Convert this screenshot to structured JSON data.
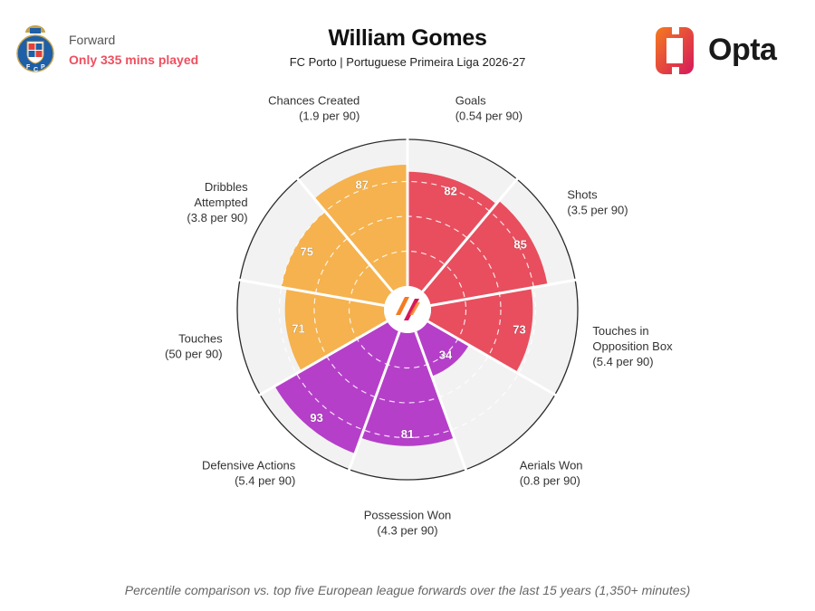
{
  "header": {
    "role": "Forward",
    "minutes_note": "Only 335 mins played",
    "title": "William Gomes",
    "subtitle": "FC Porto | Portuguese Primeira Liga 2026-27",
    "brand": "Opta"
  },
  "footnote": "Percentile comparison vs. top five European league forwards over the last 15 years (1,350+ minutes)",
  "colors": {
    "attacking": "#e84e5e",
    "possession": "#f5b24e",
    "defending": "#b53fc9",
    "background_ring": "#f2f2f2",
    "opta_orange": "#f47b20",
    "opta_magenta": "#d6175c"
  },
  "chart_data": {
    "type": "polar-bar",
    "scale_max": 100,
    "metrics": [
      {
        "name": "Goals",
        "detail": "(0.54 per 90)",
        "percentile": 82,
        "group": "attacking"
      },
      {
        "name": "Shots",
        "detail": "(3.5 per 90)",
        "percentile": 85,
        "group": "attacking"
      },
      {
        "name": "Touches in Opposition Box",
        "detail": "(5.4 per 90)",
        "percentile": 73,
        "group": "attacking"
      },
      {
        "name": "Aerials Won",
        "detail": "(0.8 per 90)",
        "percentile": 34,
        "group": "defending"
      },
      {
        "name": "Possession Won",
        "detail": "(4.3 per 90)",
        "percentile": 81,
        "group": "defending"
      },
      {
        "name": "Defensive Actions",
        "detail": "(5.4 per 90)",
        "percentile": 93,
        "group": "defending"
      },
      {
        "name": "Touches",
        "detail": "(50 per 90)",
        "percentile": 71,
        "group": "possession"
      },
      {
        "name": "Dribbles Attempted",
        "detail": "(3.8 per 90)",
        "percentile": 75,
        "group": "possession"
      },
      {
        "name": "Chances Created",
        "detail": "(1.9 per 90)",
        "percentile": 87,
        "group": "possession"
      }
    ]
  }
}
